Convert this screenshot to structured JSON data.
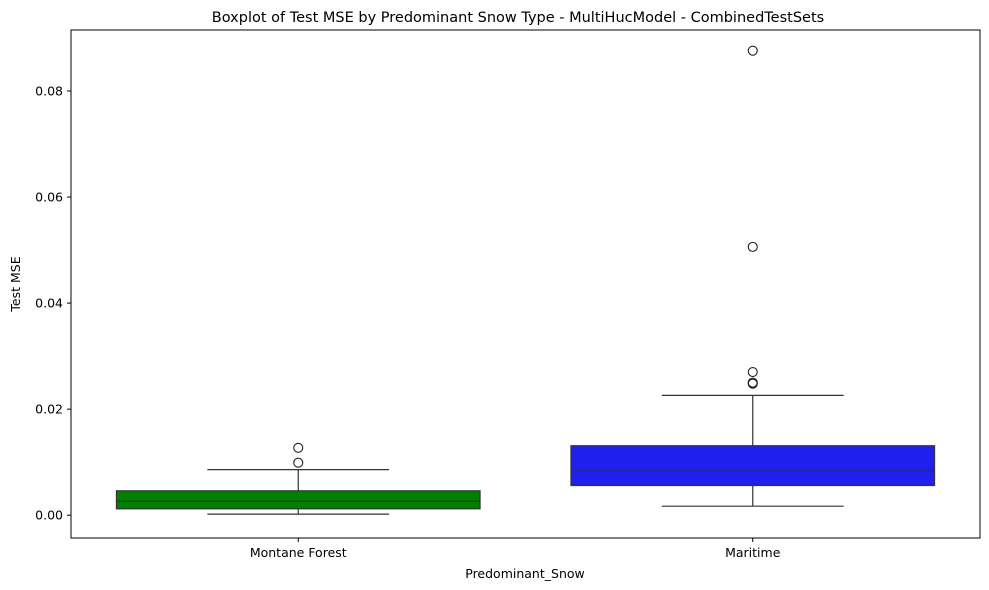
{
  "chart_data": {
    "type": "box",
    "title": "Boxplot of Test MSE by Predominant Snow Type - MultiHucModel - CombinedTestSets",
    "xlabel": "Predominant_Snow",
    "ylabel": "Test MSE",
    "ylim": [
      -0.0043,
      0.0915
    ],
    "yticks": [
      0.0,
      0.02,
      0.04,
      0.06,
      0.08
    ],
    "ytick_labels": [
      "0.00",
      "0.02",
      "0.04",
      "0.06",
      "0.08"
    ],
    "grid": false,
    "categories": [
      "Montane Forest",
      "Maritime"
    ],
    "boxes": [
      {
        "category": "Montane Forest",
        "color": "#008000",
        "whisker_low": 0.0002,
        "q1": 0.0012,
        "median": 0.0026,
        "q3": 0.0046,
        "whisker_high": 0.0086,
        "outliers": [
          0.0099,
          0.0127
        ]
      },
      {
        "category": "Maritime",
        "color": "#1f1fee",
        "whisker_low": 0.0017,
        "q1": 0.0056,
        "median": 0.0083,
        "q3": 0.0131,
        "whisker_high": 0.0226,
        "outliers": [
          0.0248,
          0.025,
          0.027,
          0.0506,
          0.0876
        ]
      }
    ]
  }
}
